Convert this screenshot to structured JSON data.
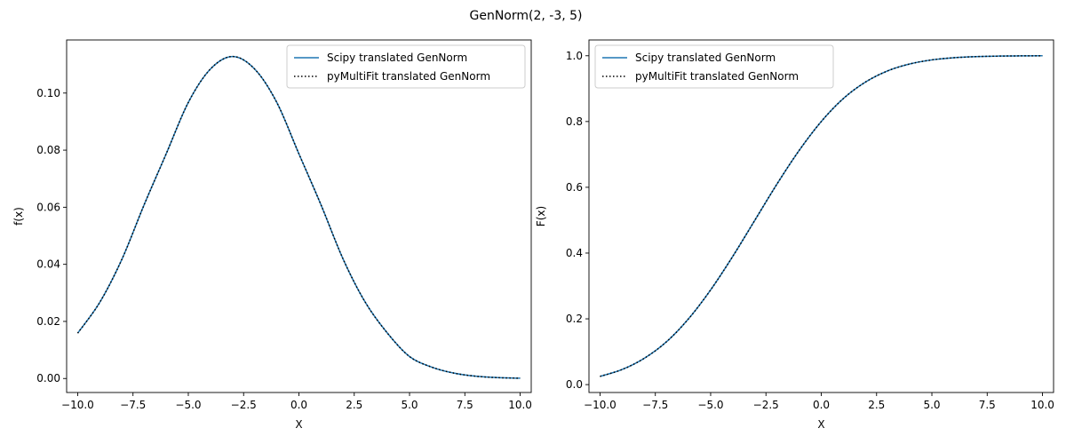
{
  "figure": {
    "suptitle": "GenNorm(2, -3, 5)"
  },
  "chart_data": [
    {
      "type": "line",
      "title": "",
      "xlabel": "X",
      "ylabel": "f(x)",
      "xlim": [
        -10.5,
        10.5
      ],
      "ylim": [
        -0.0049,
        0.1186
      ],
      "xticks": [
        -10.0,
        -7.5,
        -5.0,
        -2.5,
        0.0,
        2.5,
        5.0,
        7.5,
        10.0
      ],
      "xtick_labels": [
        "−10.0",
        "−7.5",
        "−5.0",
        "−2.5",
        "0.0",
        "2.5",
        "5.0",
        "7.5",
        "10.0"
      ],
      "yticks": [
        0.0,
        0.02,
        0.04,
        0.06,
        0.08,
        0.1
      ],
      "ytick_labels": [
        "0.00",
        "0.02",
        "0.04",
        "0.06",
        "0.08",
        "0.10"
      ],
      "grid": false,
      "legend_position": "top-right",
      "x": [
        -10,
        -9,
        -8,
        -7,
        -6,
        -5,
        -4,
        -3,
        -2,
        -1,
        0,
        1,
        2,
        3,
        4,
        5,
        6,
        7,
        8,
        9,
        10
      ],
      "series": [
        {
          "name": "Scipy translated GenNorm",
          "color": "#1f77b4",
          "style": "solid",
          "values": [
            0.0159,
            0.0267,
            0.0418,
            0.0608,
            0.0787,
            0.0967,
            0.1084,
            0.1128,
            0.1084,
            0.0967,
            0.0787,
            0.0608,
            0.0418,
            0.0267,
            0.0159,
            0.0077,
            0.004,
            0.0019,
            0.0008,
            0.0003,
            0.0001
          ]
        },
        {
          "name": "pyMultiFit translated GenNorm",
          "color": "#000000",
          "style": "dotted",
          "values": [
            0.0159,
            0.0267,
            0.0418,
            0.0608,
            0.0787,
            0.0967,
            0.1084,
            0.1128,
            0.1084,
            0.0967,
            0.0787,
            0.0608,
            0.0418,
            0.0267,
            0.0159,
            0.0077,
            0.004,
            0.0019,
            0.0008,
            0.0003,
            0.0001
          ]
        }
      ]
    },
    {
      "type": "line",
      "title": "",
      "xlabel": "X",
      "ylabel": "F(x)",
      "xlim": [
        -10.5,
        10.5
      ],
      "ylim": [
        -0.024,
        1.048
      ],
      "xticks": [
        -10.0,
        -7.5,
        -5.0,
        -2.5,
        0.0,
        2.5,
        5.0,
        7.5,
        10.0
      ],
      "xtick_labels": [
        "−10.0",
        "−7.5",
        "−5.0",
        "−2.5",
        "0.0",
        "2.5",
        "5.0",
        "7.5",
        "10.0"
      ],
      "yticks": [
        0.0,
        0.2,
        0.4,
        0.6,
        0.8,
        1.0
      ],
      "ytick_labels": [
        "0.0",
        "0.2",
        "0.4",
        "0.6",
        "0.8",
        "1.0"
      ],
      "grid": false,
      "legend_position": "top-left",
      "x": [
        -10,
        -9,
        -8,
        -7,
        -6,
        -5,
        -4,
        -3,
        -2,
        -1,
        0,
        1,
        2,
        3,
        4,
        5,
        6,
        7,
        8,
        9,
        10
      ],
      "series": [
        {
          "name": "Scipy translated GenNorm",
          "color": "#1f77b4",
          "style": "solid",
          "values": [
            0.025,
            0.046,
            0.08,
            0.13,
            0.2,
            0.288,
            0.39,
            0.5,
            0.61,
            0.712,
            0.8,
            0.87,
            0.92,
            0.954,
            0.975,
            0.9874,
            0.994,
            0.9973,
            0.9989,
            0.9996,
            0.9999
          ]
        },
        {
          "name": "pyMultiFit translated GenNorm",
          "color": "#000000",
          "style": "dotted",
          "values": [
            0.025,
            0.046,
            0.08,
            0.13,
            0.2,
            0.288,
            0.39,
            0.5,
            0.61,
            0.712,
            0.8,
            0.87,
            0.92,
            0.954,
            0.975,
            0.9874,
            0.994,
            0.9973,
            0.9989,
            0.9996,
            0.9999
          ]
        }
      ]
    }
  ]
}
